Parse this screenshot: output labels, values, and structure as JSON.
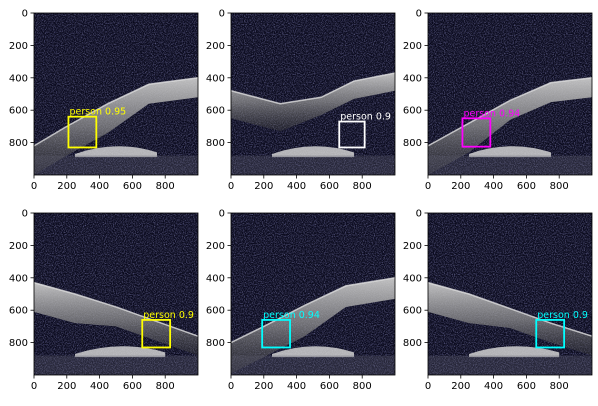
{
  "figure": {
    "panels": [
      {
        "id": "r1c1",
        "box": {
          "x1": 210,
          "y1": 640,
          "x2": 380,
          "y2": 830
        },
        "color": "#ffff00",
        "label": "person",
        "score": "0.95"
      },
      {
        "id": "r1c2",
        "box": {
          "x1": 660,
          "y1": 670,
          "x2": 815,
          "y2": 830
        },
        "color": "#ffffff",
        "label": "person",
        "score": "0.9"
      },
      {
        "id": "r1c3",
        "box": {
          "x1": 210,
          "y1": 650,
          "x2": 380,
          "y2": 825
        },
        "color": "#ff00ff",
        "label": "person",
        "score": "0.94"
      },
      {
        "id": "r2c1",
        "box": {
          "x1": 660,
          "y1": 660,
          "x2": 830,
          "y2": 830
        },
        "color": "#ffff00",
        "label": "person",
        "score": "0.9"
      },
      {
        "id": "r2c2",
        "box": {
          "x1": 190,
          "y1": 660,
          "x2": 360,
          "y2": 830
        },
        "color": "#00ffff",
        "label": "person",
        "score": "0.94"
      },
      {
        "id": "r2c3",
        "box": {
          "x1": 660,
          "y1": 660,
          "x2": 830,
          "y2": 830
        },
        "color": "#00ffff",
        "label": "person",
        "score": "0.9"
      }
    ],
    "axes": {
      "xticks": [
        0,
        200,
        400,
        600,
        800
      ],
      "yticks": [
        0,
        200,
        400,
        600,
        800
      ],
      "xlim": [
        0,
        1000
      ],
      "ylim": [
        0,
        1000
      ]
    }
  }
}
